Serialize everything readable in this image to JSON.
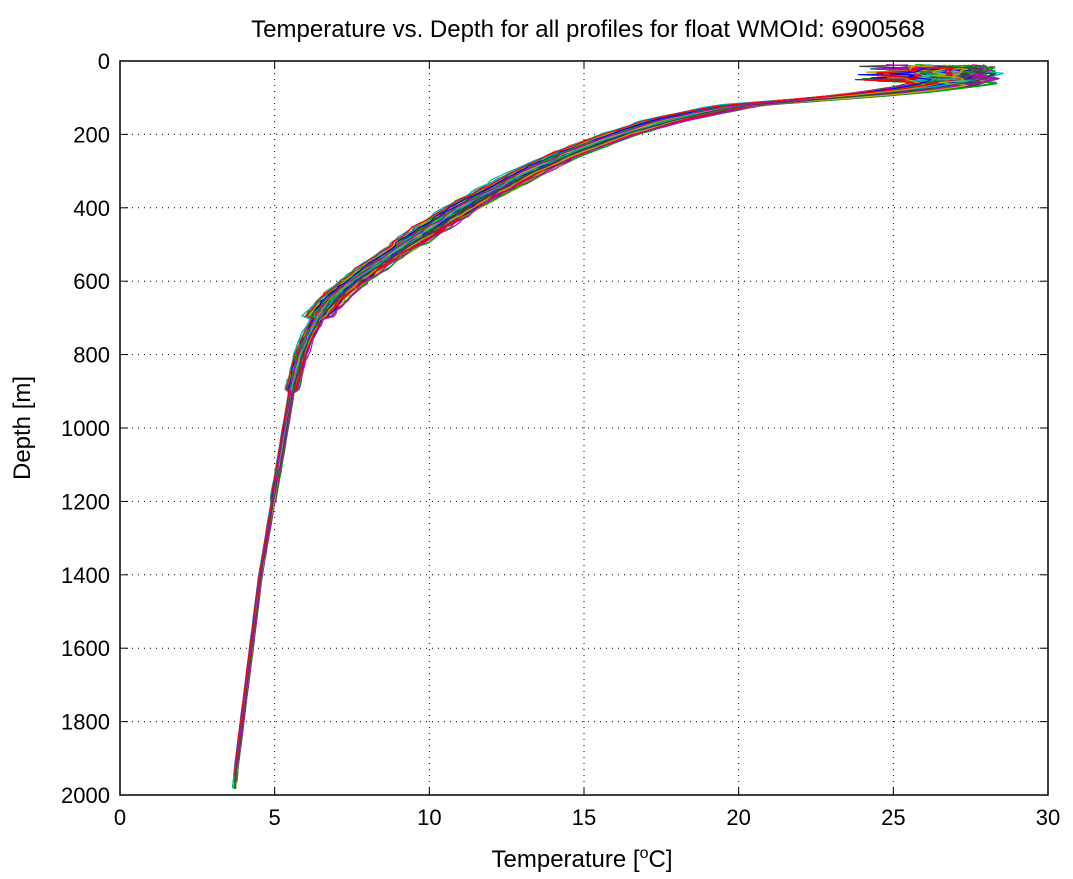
{
  "chart_data": {
    "type": "line",
    "title": "Temperature vs. Depth for all profiles for float WMOId: 6900568",
    "xlabel_main": "Temperature [",
    "xlabel_sup": "o",
    "xlabel_end": "C]",
    "ylabel": "Depth [m]",
    "xlim": [
      0,
      30
    ],
    "ylim": [
      0,
      2000
    ],
    "y_reversed": true,
    "grid": true,
    "x_ticks": [
      0,
      5,
      10,
      15,
      20,
      25,
      30
    ],
    "x_tick_labels": [
      "0",
      "5",
      "10",
      "15",
      "20",
      "25",
      "30"
    ],
    "y_ticks": [
      0,
      200,
      400,
      600,
      800,
      1000,
      1200,
      1400,
      1600,
      1800,
      2000
    ],
    "y_tick_labels": [
      "0",
      "200",
      "400",
      "600",
      "800",
      "1000",
      "1200",
      "1400",
      "1600",
      "1800",
      "2000"
    ],
    "colors": [
      "#0000ff",
      "#00a000",
      "#ff0000",
      "#00b4b4",
      "#c000c0",
      "#b4b400",
      "#404040"
    ],
    "profile_count": 140,
    "representative_profile": {
      "depth": [
        5,
        30,
        50,
        70,
        100,
        130,
        160,
        200,
        250,
        300,
        350,
        400,
        450,
        500,
        550,
        600,
        650,
        700,
        750,
        800,
        850,
        900,
        1000,
        1100,
        1200,
        1300,
        1400,
        1500,
        1600,
        1700,
        1800,
        1900,
        1975
      ],
      "temperature": [
        26.5,
        26.0,
        25.5,
        24.0,
        21.5,
        19.5,
        17.8,
        16.2,
        14.6,
        13.3,
        12.2,
        11.1,
        10.2,
        9.3,
        8.4,
        7.6,
        6.9,
        6.4,
        6.1,
        5.85,
        5.7,
        5.55,
        5.35,
        5.15,
        4.95,
        4.75,
        4.55,
        4.4,
        4.25,
        4.1,
        3.95,
        3.8,
        3.7
      ]
    }
  }
}
